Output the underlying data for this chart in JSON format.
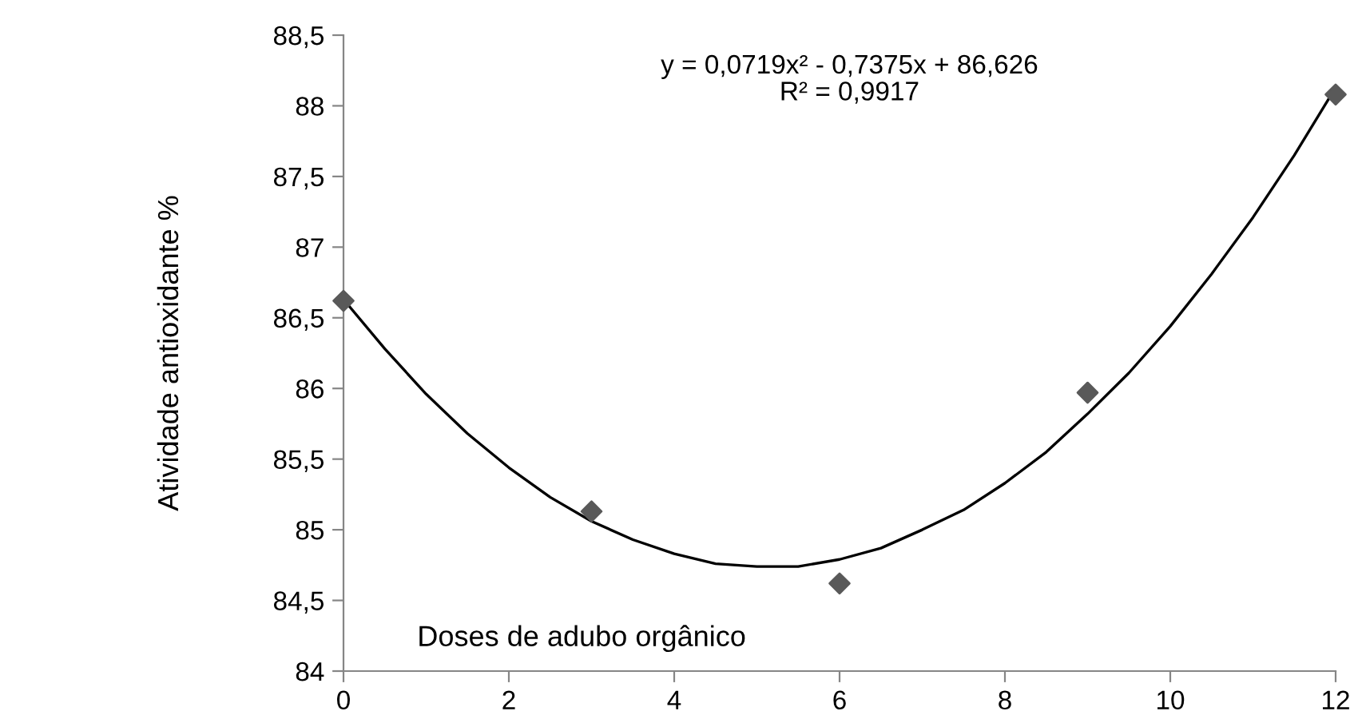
{
  "chart_data": {
    "type": "scatter",
    "xlabel": "Doses de adubo orgânico",
    "ylabel": "Atividade antioxidante %",
    "annotations": [
      "y = 0,0719x² - 0,7375x + 86,626\nR² = 0,9917"
    ],
    "xlim": [
      0,
      12
    ],
    "xticks": [
      0,
      2,
      4,
      6,
      8,
      10,
      12
    ],
    "ylim": [
      84,
      88.5
    ],
    "yticks": [
      {
        "value": 84,
        "label": "84"
      },
      {
        "value": 84.5,
        "label": "84,5"
      },
      {
        "value": 85,
        "label": "85"
      },
      {
        "value": 85.5,
        "label": "85,5"
      },
      {
        "value": 86,
        "label": "86"
      },
      {
        "value": 86.5,
        "label": "86,5"
      },
      {
        "value": 87,
        "label": "87"
      },
      {
        "value": 87.5,
        "label": "87,5"
      },
      {
        "value": 88,
        "label": "88"
      },
      {
        "value": 88.5,
        "label": "88,5"
      }
    ],
    "grid": false,
    "legend": false,
    "marker": "diamond",
    "series": [
      {
        "color": "#595959",
        "x": [
          0,
          3,
          6,
          9,
          12
        ],
        "values": [
          86.62,
          85.13,
          84.62,
          85.97,
          88.08
        ]
      },
      {
        "type": "line",
        "color": "#000000",
        "marker": "none",
        "x": [
          0,
          0.5,
          1,
          1.5,
          2,
          2.5,
          3,
          3.5,
          4,
          4.5,
          5,
          5.5,
          6,
          6.5,
          7,
          7.5,
          8,
          8.5,
          9,
          9.5,
          10,
          10.5,
          11,
          11.5,
          12
        ],
        "values": [
          86.63,
          86.28,
          85.96,
          85.68,
          85.44,
          85.23,
          85.06,
          84.93,
          84.83,
          84.76,
          84.74,
          84.74,
          84.79,
          84.87,
          85.0,
          85.14,
          85.33,
          85.55,
          85.82,
          86.11,
          86.44,
          86.81,
          87.21,
          87.65,
          88.13
        ]
      }
    ]
  }
}
